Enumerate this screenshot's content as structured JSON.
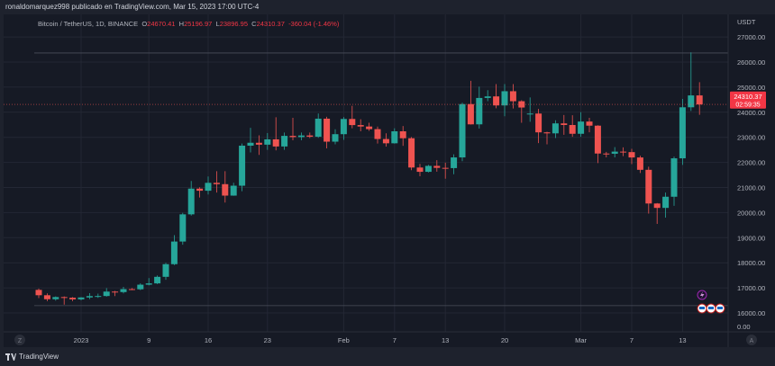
{
  "header": {
    "published": "ronaldomarquez998 publicado en TradingView.com, Mar 15, 2023 17:00 UTC-4"
  },
  "legend": {
    "symbol": "Bitcoin / TetherUS, 1D, BINANCE",
    "o_label": "O",
    "o": "24670.41",
    "h_label": "H",
    "h": "25196.97",
    "l_label": "L",
    "l": "23896.95",
    "c_label": "C",
    "c": "24310.37",
    "change": "-360.04 (-1.46%)"
  },
  "price_axis": {
    "currency": "USDT",
    "ticks": [
      "27000.00",
      "26000.00",
      "25000.00",
      "24000.00",
      "23000.00",
      "22000.00",
      "21000.00",
      "20000.00",
      "19000.00",
      "18000.00",
      "17000.00",
      "16000.00"
    ],
    "zero": "0.00"
  },
  "last_price": {
    "price": "24310.37",
    "countdown": "02:59:35",
    "color": "#f23645"
  },
  "time_axis": {
    "ticks": [
      {
        "label": "2023",
        "i": 5
      },
      {
        "label": "9",
        "i": 13
      },
      {
        "label": "16",
        "i": 20
      },
      {
        "label": "23",
        "i": 27
      },
      {
        "label": "Feb",
        "i": 36
      },
      {
        "label": "7",
        "i": 42
      },
      {
        "label": "13",
        "i": 48
      },
      {
        "label": "20",
        "i": 55
      },
      {
        "label": "Mar",
        "i": 64
      },
      {
        "label": "7",
        "i": 70
      },
      {
        "label": "13",
        "i": 76
      }
    ],
    "left_button": "Z",
    "right_button": "A"
  },
  "footer": {
    "brand": "TradingView"
  },
  "colors": {
    "up": "#26a69a",
    "down": "#ef5350",
    "background": "#161a25",
    "grid": "#232734",
    "event": "#9c27b0"
  },
  "horizontal_lines": [
    26360,
    16290
  ],
  "chart_data": {
    "type": "candlestick",
    "first_date": "2022-12-27",
    "interval": "1D",
    "ylim": [
      16000,
      27000
    ],
    "ohlc": [
      [
        16919,
        16970,
        16590,
        16706
      ],
      [
        16706,
        16780,
        16470,
        16547
      ],
      [
        16547,
        16660,
        16490,
        16633
      ],
      [
        16633,
        16660,
        16330,
        16607
      ],
      [
        16607,
        16630,
        16470,
        16542
      ],
      [
        16542,
        16630,
        16500,
        16617
      ],
      [
        16617,
        16790,
        16550,
        16672
      ],
      [
        16672,
        16770,
        16600,
        16675
      ],
      [
        16675,
        16990,
        16650,
        16851
      ],
      [
        16851,
        16880,
        16670,
        16831
      ],
      [
        16831,
        17040,
        16780,
        16950
      ],
      [
        16950,
        16990,
        16910,
        16943
      ],
      [
        16943,
        17180,
        16910,
        17127
      ],
      [
        17127,
        17390,
        17100,
        17178
      ],
      [
        17178,
        17490,
        17150,
        17440
      ],
      [
        17440,
        18000,
        17320,
        17944
      ],
      [
        17944,
        19100,
        17910,
        18846
      ],
      [
        18846,
        19990,
        18720,
        19930
      ],
      [
        19930,
        21260,
        19880,
        20955
      ],
      [
        20955,
        21010,
        20600,
        20871
      ],
      [
        20871,
        21440,
        20720,
        21186
      ],
      [
        21186,
        21650,
        20800,
        21133
      ],
      [
        21133,
        21650,
        20400,
        20677
      ],
      [
        20677,
        21190,
        20670,
        21071
      ],
      [
        21071,
        22750,
        20850,
        22667
      ],
      [
        22667,
        23380,
        22400,
        22783
      ],
      [
        22783,
        23080,
        22300,
        22707
      ],
      [
        22707,
        23170,
        22500,
        22919
      ],
      [
        22919,
        23800,
        22480,
        22635
      ],
      [
        22635,
        23190,
        22500,
        23058
      ],
      [
        23058,
        23780,
        22880,
        23009
      ],
      [
        23009,
        23190,
        22880,
        23074
      ],
      [
        23074,
        23190,
        22970,
        23023
      ],
      [
        23023,
        23950,
        22980,
        23743
      ],
      [
        23743,
        23820,
        22560,
        22827
      ],
      [
        22827,
        23320,
        22720,
        23125
      ],
      [
        23125,
        23810,
        22900,
        23732
      ],
      [
        23732,
        24255,
        23360,
        23488
      ],
      [
        23488,
        23720,
        23240,
        23431
      ],
      [
        23431,
        23580,
        23260,
        23326
      ],
      [
        23326,
        23430,
        22750,
        22933
      ],
      [
        22933,
        23160,
        22630,
        22762
      ],
      [
        22762,
        23360,
        22750,
        23240
      ],
      [
        23240,
        23450,
        22660,
        22963
      ],
      [
        22963,
        23010,
        21690,
        21796
      ],
      [
        21796,
        21940,
        21450,
        21625
      ],
      [
        21625,
        21900,
        21600,
        21862
      ],
      [
        21862,
        22090,
        21630,
        21783
      ],
      [
        21783,
        21990,
        21350,
        21773
      ],
      [
        21773,
        22320,
        21530,
        22199
      ],
      [
        22199,
        24380,
        22050,
        24324
      ],
      [
        24324,
        25250,
        23510,
        23517
      ],
      [
        23517,
        25020,
        23350,
        24569
      ],
      [
        24569,
        24880,
        24440,
        24631
      ],
      [
        24631,
        25120,
        24160,
        24271
      ],
      [
        24271,
        25121,
        23840,
        24837
      ],
      [
        24837,
        25121,
        24150,
        24439
      ],
      [
        24439,
        24480,
        23580,
        24188
      ],
      [
        23947,
        24590,
        23620,
        23947
      ],
      [
        23947,
        24130,
        22770,
        23198
      ],
      [
        23198,
        23220,
        22720,
        23158
      ],
      [
        23158,
        23680,
        22970,
        23555
      ],
      [
        23555,
        23890,
        23100,
        23491
      ],
      [
        23491,
        23880,
        23020,
        23141
      ],
      [
        23141,
        24000,
        23020,
        23628
      ],
      [
        23628,
        23780,
        23200,
        23465
      ],
      [
        23465,
        23480,
        21970,
        22354
      ],
      [
        22354,
        22420,
        22200,
        22346
      ],
      [
        22346,
        22610,
        22200,
        22430
      ],
      [
        22430,
        22600,
        22250,
        22410
      ],
      [
        22410,
        22540,
        21930,
        22197
      ],
      [
        22197,
        22270,
        21580,
        21705
      ],
      [
        21705,
        21830,
        19960,
        20362
      ],
      [
        20362,
        20380,
        19549,
        20187
      ],
      [
        20187,
        20800,
        19800,
        20632
      ],
      [
        20632,
        22230,
        20270,
        22163
      ],
      [
        22163,
        24530,
        21900,
        24197
      ],
      [
        24197,
        26386,
        24050,
        24670
      ],
      [
        24670,
        25197,
        23897,
        24310
      ]
    ]
  }
}
